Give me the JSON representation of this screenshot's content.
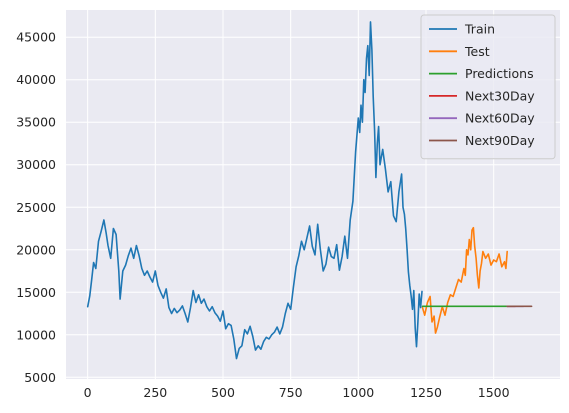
{
  "colors": {
    "background": "#ffffff",
    "plot_background": "#eaeaf2",
    "grid": "#ffffff",
    "text": "#262626",
    "legend_border": "#cccccc"
  },
  "chart_data": {
    "type": "line",
    "title": "",
    "xlabel": "",
    "ylabel": "",
    "xlim": [
      -80,
      1745
    ],
    "ylim": [
      4800,
      48200
    ],
    "x_ticks": [
      0,
      250,
      500,
      750,
      1000,
      1250,
      1500
    ],
    "y_ticks": [
      5000,
      10000,
      15000,
      20000,
      25000,
      30000,
      35000,
      40000,
      45000
    ],
    "grid": true,
    "legend_position": "top-right",
    "series": [
      {
        "name": "Train",
        "color": "#1f77b4",
        "x": [
          0,
          8,
          15,
          22,
          30,
          40,
          50,
          60,
          68,
          75,
          85,
          95,
          105,
          115,
          120,
          130,
          140,
          150,
          160,
          170,
          180,
          190,
          200,
          210,
          220,
          230,
          240,
          250,
          260,
          270,
          280,
          290,
          300,
          310,
          320,
          330,
          340,
          350,
          360,
          370,
          380,
          390,
          400,
          410,
          420,
          430,
          440,
          450,
          460,
          470,
          480,
          490,
          500,
          510,
          520,
          530,
          540,
          550,
          560,
          570,
          580,
          590,
          600,
          610,
          620,
          630,
          640,
          650,
          660,
          670,
          680,
          690,
          700,
          710,
          720,
          730,
          740,
          750,
          760,
          770,
          780,
          790,
          800,
          810,
          820,
          830,
          840,
          850,
          860,
          870,
          880,
          890,
          900,
          910,
          920,
          930,
          940,
          950,
          960,
          970,
          980,
          990,
          1000,
          1005,
          1010,
          1015,
          1020,
          1025,
          1030,
          1035,
          1040,
          1045,
          1050,
          1055,
          1060,
          1065,
          1070,
          1075,
          1080,
          1090,
          1100,
          1110,
          1120,
          1130,
          1140,
          1150,
          1160,
          1165,
          1170,
          1175,
          1180,
          1185,
          1190,
          1195,
          1200,
          1205,
          1210,
          1215,
          1220,
          1225,
          1230,
          1235
        ],
        "y": [
          13300,
          14600,
          16500,
          18500,
          17800,
          21000,
          22200,
          23500,
          22000,
          20500,
          19000,
          22500,
          21800,
          17500,
          14200,
          17500,
          18200,
          19300,
          20200,
          19000,
          20500,
          19300,
          17800,
          17000,
          17500,
          16800,
          16200,
          17500,
          15800,
          15000,
          14300,
          15400,
          13200,
          12500,
          13100,
          12600,
          12900,
          13400,
          12500,
          11500,
          13200,
          15200,
          13800,
          14700,
          13700,
          14200,
          13300,
          12800,
          13300,
          12600,
          12200,
          11600,
          12800,
          10700,
          11300,
          11100,
          9500,
          7200,
          8400,
          8700,
          10600,
          10100,
          11000,
          9800,
          8200,
          8700,
          8300,
          9200,
          9700,
          9500,
          10000,
          10300,
          10900,
          10100,
          10900,
          12500,
          13700,
          13000,
          15600,
          18000,
          19300,
          21000,
          20000,
          21400,
          22800,
          20400,
          19400,
          23000,
          20000,
          17500,
          18300,
          20300,
          19200,
          19000,
          20600,
          17600,
          19200,
          21600,
          19000,
          23500,
          25700,
          31500,
          35500,
          33800,
          37000,
          35000,
          40000,
          38500,
          42500,
          44000,
          40500,
          46800,
          43500,
          38000,
          34000,
          28500,
          32500,
          34500,
          30000,
          31800,
          29500,
          26800,
          28000,
          24000,
          23300,
          26800,
          28900,
          25000,
          24200,
          22500,
          20000,
          17400,
          15800,
          14600,
          13000,
          15200,
          10800,
          8600,
          11500,
          14800,
          13200,
          15100
        ]
      },
      {
        "name": "Test",
        "color": "#ff7f0e",
        "x": [
          1237,
          1245,
          1255,
          1265,
          1272,
          1280,
          1285,
          1292,
          1300,
          1310,
          1320,
          1330,
          1340,
          1350,
          1360,
          1370,
          1380,
          1390,
          1395,
          1400,
          1405,
          1410,
          1415,
          1420,
          1425,
          1430,
          1435,
          1440,
          1445,
          1450,
          1455,
          1460,
          1470,
          1480,
          1490,
          1500,
          1510,
          1520,
          1530,
          1540,
          1545,
          1550
        ],
        "y": [
          13200,
          12300,
          13800,
          14500,
          11500,
          12200,
          10200,
          10900,
          12000,
          13300,
          12300,
          13800,
          14700,
          14500,
          15500,
          16500,
          16200,
          17800,
          17000,
          20000,
          19400,
          21200,
          20000,
          22300,
          22600,
          20400,
          19000,
          17000,
          15500,
          17500,
          18400,
          19800,
          19000,
          19500,
          18200,
          18800,
          18600,
          19500,
          18000,
          18600,
          17800,
          19800
        ]
      },
      {
        "name": "Predictions",
        "color": "#2ca02c",
        "x": [
          1237,
          1550
        ],
        "y": [
          13350,
          13350
        ]
      },
      {
        "name": "Next30Day",
        "color": "#d62728",
        "x": [
          1550,
          1580
        ],
        "y": [
          13350,
          13350
        ]
      },
      {
        "name": "Next60Day",
        "color": "#9467bd",
        "x": [
          1550,
          1610
        ],
        "y": [
          13350,
          13350
        ]
      },
      {
        "name": "Next90Day",
        "color": "#8c564b",
        "x": [
          1550,
          1640
        ],
        "y": [
          13350,
          13350
        ]
      }
    ]
  }
}
